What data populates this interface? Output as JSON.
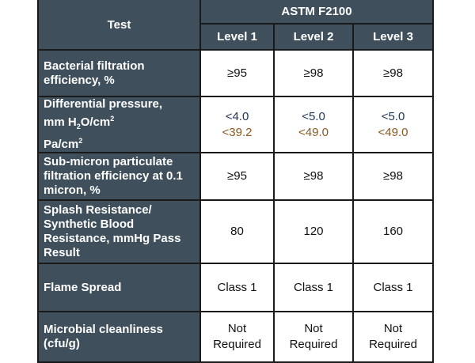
{
  "header": {
    "test": "Test",
    "standard": "ASTM F2100",
    "levels": [
      "Level 1",
      "Level 2",
      "Level 3"
    ]
  },
  "rows": [
    {
      "label": "Bacterial filtration efficiency, %",
      "values": [
        "≥95",
        "≥98",
        "≥98"
      ]
    },
    {
      "label_line1": "Differential pressure,",
      "label_line2a": "mm H",
      "label_sub": "2",
      "label_line2b": "O/cm",
      "label_sup": "2",
      "label_line3": "Pa/cm",
      "label_sup3": "2",
      "values_primary": [
        "<4.0",
        "<5.0",
        "<5.0"
      ],
      "values_secondary": [
        "<39.2",
        "<49.0",
        "<49.0"
      ],
      "colors": {
        "primary": "#1f3555",
        "secondary": "#8a5a22"
      }
    },
    {
      "label": "Sub-micron particulate filtration efficiency at 0.1 micron, %",
      "values": [
        "≥95",
        "≥98",
        "≥98"
      ]
    },
    {
      "label": "Splash Resistance/ Synthetic Blood Resistance, mmHg Pass Result",
      "values": [
        "80",
        "120",
        "160"
      ]
    },
    {
      "label": "Flame Spread",
      "values": [
        "Class 1",
        "Class 1",
        "Class 1"
      ]
    },
    {
      "label": "Microbial cleanliness (cfu/g)",
      "values": [
        "Not Required",
        "Not Required",
        "Not Required"
      ]
    }
  ]
}
